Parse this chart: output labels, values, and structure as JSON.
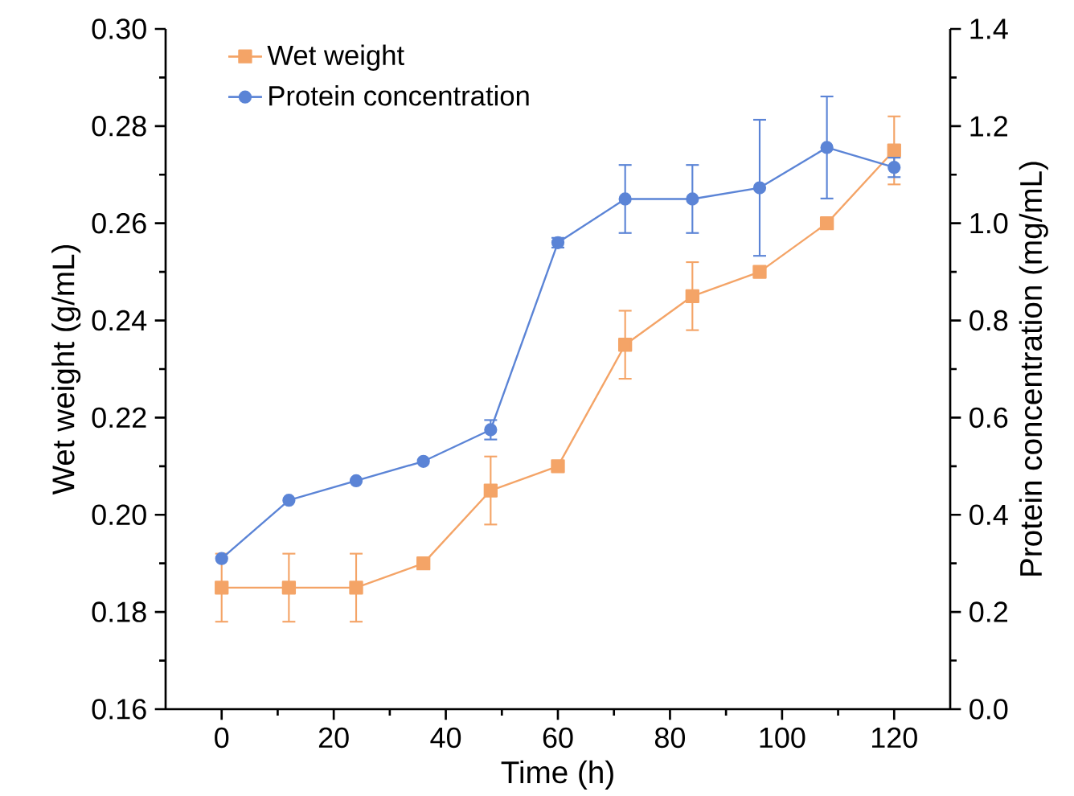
{
  "chart_data": {
    "type": "line",
    "xlabel": "Time (h)",
    "ylabel": "Wet weight (g/mL)",
    "y2label": "Protein concentration (mg/mL)",
    "x": [
      0,
      12,
      24,
      36,
      48,
      60,
      72,
      84,
      96,
      108,
      120
    ],
    "series": [
      {
        "name": "Wet weight",
        "color": "#f4a467",
        "marker": "square",
        "values": [
          0.185,
          0.185,
          0.185,
          0.19,
          0.205,
          0.21,
          0.235,
          0.245,
          0.25,
          0.26,
          0.275
        ],
        "errors": [
          0.007,
          0.007,
          0.007,
          null,
          0.007,
          null,
          0.007,
          0.007,
          null,
          null,
          0.007
        ]
      },
      {
        "name": "Protein concentration",
        "color": "#5b84d6",
        "marker": "circle",
        "axis": "y2",
        "values": [
          0.31,
          0.43,
          0.47,
          0.51,
          0.575,
          0.96,
          1.05,
          1.05,
          1.073,
          1.156,
          1.115
        ],
        "errors": [
          null,
          null,
          null,
          null,
          0.02,
          0.01,
          0.07,
          0.07,
          0.14,
          0.105,
          0.02
        ]
      }
    ],
    "xlim": [
      -10,
      130
    ],
    "xticks": [
      0,
      20,
      40,
      60,
      80,
      100,
      120
    ],
    "ylim": [
      0.16,
      0.3
    ],
    "yticks": [
      {
        "value": 0.16,
        "label": "0.16"
      },
      {
        "value": 0.18,
        "label": "0.18"
      },
      {
        "value": 0.2,
        "label": "0.20"
      },
      {
        "value": 0.22,
        "label": "0.22"
      },
      {
        "value": 0.24,
        "label": "0.24"
      },
      {
        "value": 0.26,
        "label": "0.26"
      },
      {
        "value": 0.28,
        "label": "0.28"
      },
      {
        "value": 0.3,
        "label": "0.30"
      }
    ],
    "y2lim": [
      0,
      1.4
    ],
    "y2ticks": [
      {
        "value": 0,
        "label": "0.0"
      },
      {
        "value": 0.2,
        "label": "0.2"
      },
      {
        "value": 0.4,
        "label": "0.4"
      },
      {
        "value": 0.6,
        "label": "0.6"
      },
      {
        "value": 0.8,
        "label": "0.8"
      },
      {
        "value": 1.0,
        "label": "1.0"
      },
      {
        "value": 1.2,
        "label": "1.2"
      },
      {
        "value": 1.4,
        "label": "1.4"
      }
    ],
    "grid": false,
    "legend": "top left"
  }
}
